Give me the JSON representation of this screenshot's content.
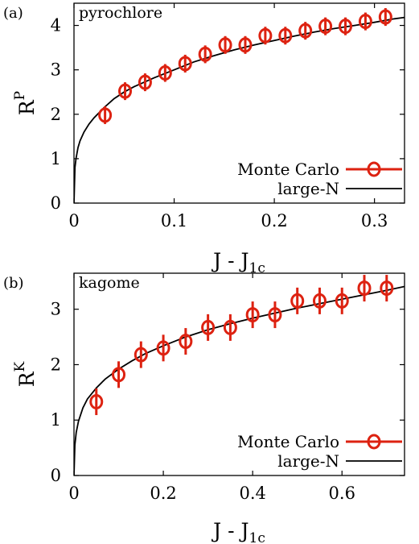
{
  "colors": {
    "monte_carlo": "#dd2211",
    "large_n": "#000000",
    "axis": "#000000"
  },
  "chart_data": [
    {
      "type": "line",
      "panel_label": "(a)",
      "title": "pyrochlore",
      "xlabel": "J - J",
      "xlabel_sub": "1c",
      "ylabel": "R",
      "ylabel_sup": "P",
      "xlim": [
        0,
        0.33
      ],
      "ylim": [
        0,
        4.5
      ],
      "xticks": [
        0,
        0.1,
        0.2,
        0.3
      ],
      "xtick_labels": [
        "0",
        "0.1",
        "0.2",
        "0.3"
      ],
      "yticks": [
        0,
        1,
        2,
        3,
        4
      ],
      "ytick_labels": [
        "0",
        "1",
        "2",
        "3",
        "4"
      ],
      "grid": false,
      "legend_position": "bottom-right",
      "series": [
        {
          "name": "Monte Carlo",
          "style": "markers-errorbars",
          "x": [
            0.031,
            0.051,
            0.071,
            0.091,
            0.111,
            0.131,
            0.151,
            0.171,
            0.191,
            0.211,
            0.231,
            0.251,
            0.271,
            0.291,
            0.311
          ],
          "y": [
            1.98,
            2.52,
            2.72,
            2.93,
            3.14,
            3.35,
            3.56,
            3.56,
            3.77,
            3.77,
            3.88,
            3.98,
            3.98,
            4.09,
            4.19
          ],
          "err": [
            0.2,
            0.2,
            0.2,
            0.2,
            0.2,
            0.2,
            0.2,
            0.2,
            0.2,
            0.2,
            0.2,
            0.2,
            0.2,
            0.2,
            0.2
          ]
        },
        {
          "name": "large-N",
          "style": "line",
          "x": [
            0,
            0.001,
            0.002,
            0.004,
            0.006,
            0.008,
            0.01,
            0.015,
            0.02,
            0.03,
            0.04,
            0.05,
            0.06,
            0.08,
            0.1,
            0.12,
            0.14,
            0.16,
            0.18,
            0.2,
            0.22,
            0.24,
            0.26,
            0.28,
            0.3,
            0.32,
            0.33
          ],
          "y": [
            0,
            0.8,
            1.0,
            1.25,
            1.4,
            1.5,
            1.6,
            1.78,
            1.92,
            2.15,
            2.35,
            2.5,
            2.62,
            2.82,
            3.0,
            3.18,
            3.32,
            3.45,
            3.56,
            3.66,
            3.76,
            3.85,
            3.93,
            4.0,
            4.07,
            4.15,
            4.18
          ]
        }
      ]
    },
    {
      "type": "line",
      "panel_label": "(b)",
      "title": "kagome",
      "xlabel": "J - J",
      "xlabel_sub": "1c",
      "ylabel": "R",
      "ylabel_sup": "K",
      "xlim": [
        0,
        0.74
      ],
      "ylim": [
        0,
        3.65
      ],
      "xticks": [
        0,
        0.2,
        0.4,
        0.6
      ],
      "xtick_labels": [
        "0",
        "0.2",
        "0.4",
        "0.6"
      ],
      "yticks": [
        0,
        1,
        2,
        3
      ],
      "ytick_labels": [
        "0",
        "1",
        "2",
        "3"
      ],
      "grid": false,
      "legend_position": "bottom-right",
      "series": [
        {
          "name": "Monte Carlo",
          "style": "markers-errorbars",
          "x": [
            0.05,
            0.1,
            0.15,
            0.2,
            0.25,
            0.3,
            0.35,
            0.4,
            0.45,
            0.5,
            0.55,
            0.6,
            0.65,
            0.7
          ],
          "y": [
            1.33,
            1.82,
            2.18,
            2.3,
            2.42,
            2.67,
            2.67,
            2.9,
            2.9,
            3.15,
            3.15,
            3.15,
            3.38,
            3.38
          ],
          "err": [
            0.24,
            0.24,
            0.24,
            0.24,
            0.24,
            0.24,
            0.24,
            0.24,
            0.24,
            0.24,
            0.24,
            0.24,
            0.24,
            0.24
          ]
        },
        {
          "name": "large-N",
          "style": "line",
          "x": [
            0,
            0.002,
            0.005,
            0.01,
            0.02,
            0.03,
            0.05,
            0.07,
            0.1,
            0.13,
            0.16,
            0.2,
            0.25,
            0.3,
            0.35,
            0.4,
            0.45,
            0.5,
            0.55,
            0.6,
            0.65,
            0.7,
            0.74
          ],
          "y": [
            0,
            0.55,
            0.78,
            0.98,
            1.22,
            1.38,
            1.58,
            1.74,
            1.92,
            2.07,
            2.2,
            2.34,
            2.5,
            2.63,
            2.74,
            2.84,
            2.93,
            3.02,
            3.1,
            3.18,
            3.26,
            3.34,
            3.41
          ]
        }
      ]
    }
  ]
}
